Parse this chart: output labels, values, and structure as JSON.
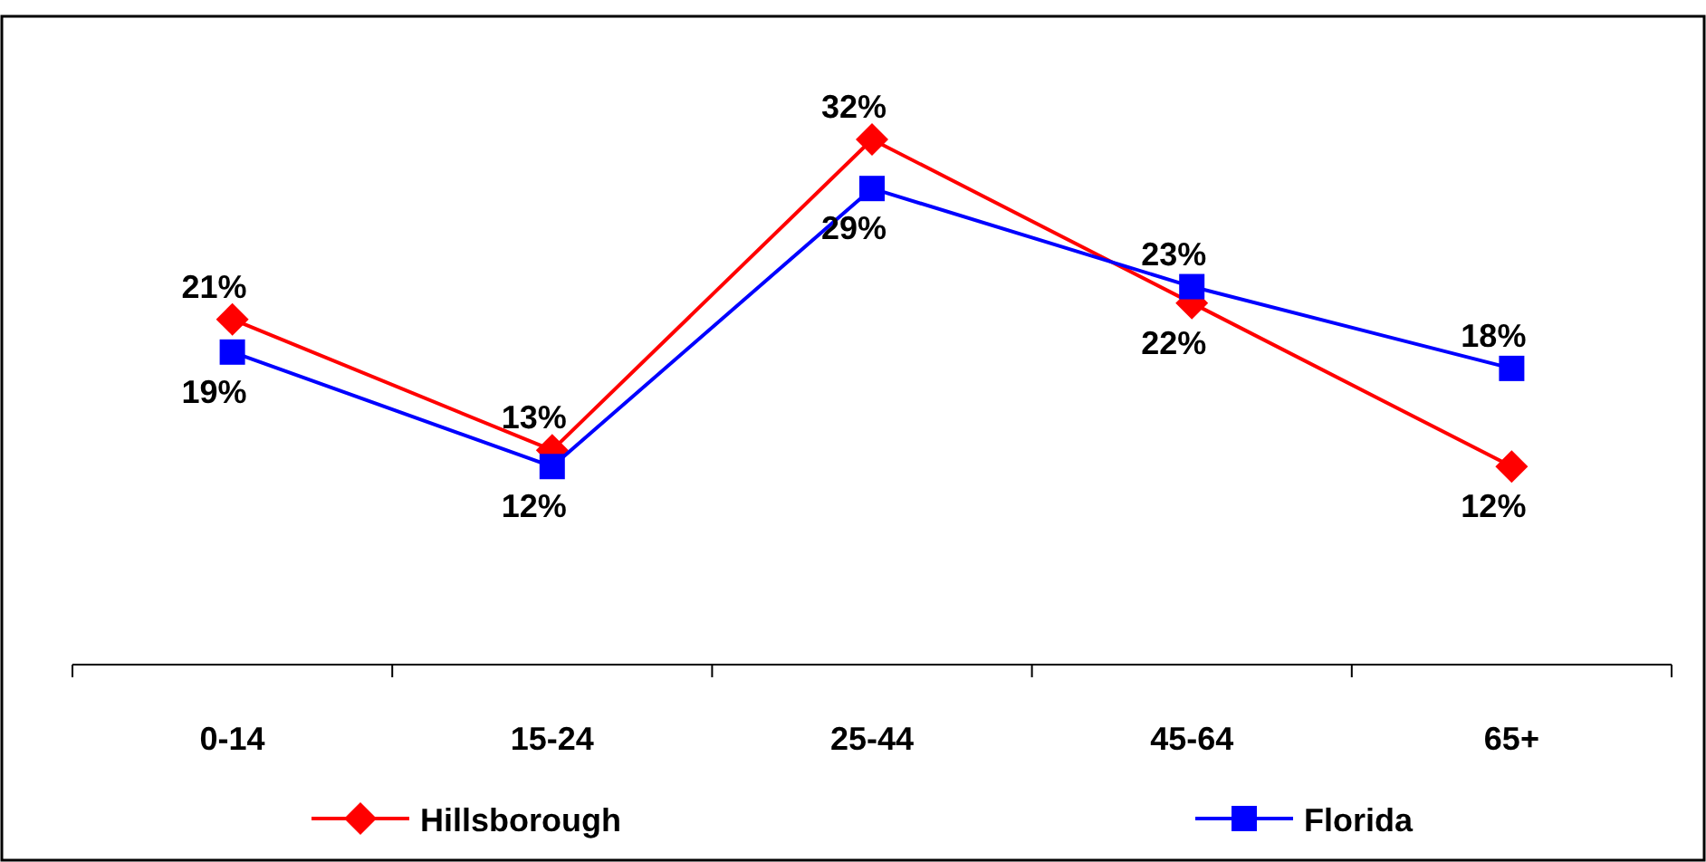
{
  "chart_data": {
    "type": "line",
    "categories": [
      "0-14",
      "15-24",
      "25-44",
      "45-64",
      "65+"
    ],
    "series": [
      {
        "name": "Hillsborough",
        "color": "#ff0000",
        "marker": "diamond",
        "values": [
          21,
          13,
          32,
          22,
          12
        ],
        "value_labels": [
          "21%",
          "13%",
          "32%",
          "22%",
          "12%"
        ]
      },
      {
        "name": "Florida",
        "color": "#0000ff",
        "marker": "square",
        "values": [
          19,
          12,
          29,
          23,
          18
        ],
        "value_labels": [
          "19%",
          "12%",
          "29%",
          "23%",
          "18%"
        ]
      }
    ],
    "legend": "bottom",
    "tick_labels": "x"
  }
}
